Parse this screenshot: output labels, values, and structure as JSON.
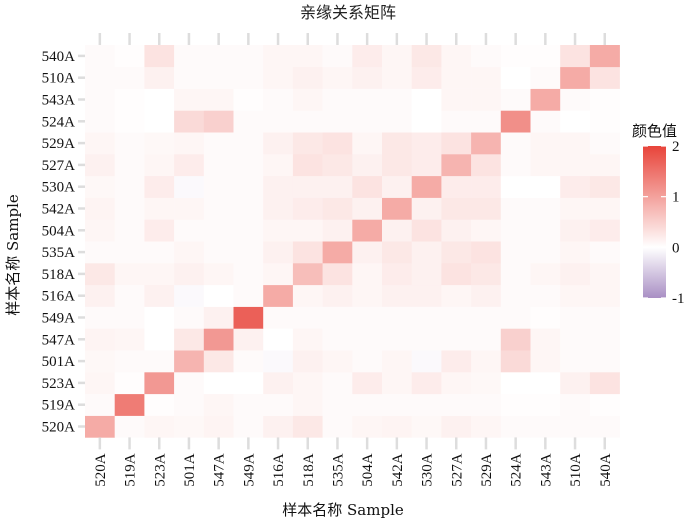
{
  "chart_data": {
    "type": "heatmap",
    "title": "亲缘关系矩阵",
    "xlabel": "样本名称 Sample",
    "ylabel": "样本名称 Sample",
    "samples": [
      "520A",
      "519A",
      "523A",
      "501A",
      "547A",
      "549A",
      "516A",
      "518A",
      "535A",
      "504A",
      "542A",
      "530A",
      "527A",
      "529A",
      "524A",
      "543A",
      "510A",
      "540A"
    ],
    "legend": {
      "title": "颜色值",
      "range": [
        -1,
        2
      ],
      "ticks": [
        "2",
        "1",
        "0",
        "-1"
      ],
      "tick_values": [
        2,
        1,
        0,
        -1
      ],
      "colors": {
        "low": "#a98fc4",
        "mid": "#ffffff",
        "high": "#e8443a"
      }
    },
    "grid": false,
    "legend_placement": "right",
    "matrix": [
      [
        0.9,
        0.05,
        0.1,
        0.08,
        0.12,
        0.05,
        0.15,
        0.25,
        0.05,
        0.1,
        0.12,
        0.08,
        0.15,
        0.1,
        0.05,
        0.05,
        0.05,
        0.05
      ],
      [
        0.05,
        1.4,
        0.02,
        0.05,
        0.1,
        0.05,
        0.05,
        0.1,
        0.05,
        0.05,
        0.05,
        0.05,
        0.05,
        0.05,
        0.02,
        0.02,
        0.05,
        0.02
      ],
      [
        0.1,
        0.02,
        1.1,
        0.05,
        0.0,
        0.0,
        0.15,
        0.1,
        0.05,
        0.2,
        0.1,
        0.2,
        0.1,
        0.08,
        0.0,
        0.0,
        0.15,
        0.3
      ],
      [
        0.08,
        0.05,
        0.05,
        0.8,
        0.25,
        0.05,
        -0.05,
        0.15,
        0.1,
        0.05,
        0.1,
        -0.05,
        0.2,
        0.1,
        0.4,
        0.1,
        0.05,
        0.05
      ],
      [
        0.12,
        0.1,
        0.0,
        0.25,
        1.1,
        0.15,
        0.0,
        0.1,
        0.05,
        0.05,
        0.05,
        0.05,
        0.05,
        0.05,
        0.5,
        0.1,
        0.05,
        0.05
      ],
      [
        0.05,
        0.05,
        0.0,
        0.05,
        0.15,
        1.7,
        0.05,
        0.05,
        0.05,
        0.05,
        0.05,
        0.05,
        0.05,
        0.05,
        0.05,
        0.02,
        0.05,
        0.05
      ],
      [
        0.15,
        0.05,
        0.15,
        -0.05,
        0.0,
        0.05,
        0.9,
        0.1,
        0.15,
        0.1,
        0.15,
        0.15,
        0.1,
        0.15,
        0.05,
        0.05,
        0.1,
        0.1
      ],
      [
        0.25,
        0.1,
        0.1,
        0.15,
        0.1,
        0.05,
        0.1,
        0.7,
        0.3,
        0.1,
        0.2,
        0.15,
        0.3,
        0.25,
        0.05,
        0.1,
        0.15,
        0.1
      ],
      [
        0.05,
        0.05,
        0.05,
        0.1,
        0.05,
        0.05,
        0.15,
        0.3,
        0.9,
        0.15,
        0.25,
        0.15,
        0.25,
        0.3,
        0.05,
        0.05,
        0.1,
        0.05
      ],
      [
        0.1,
        0.05,
        0.2,
        0.05,
        0.05,
        0.05,
        0.1,
        0.1,
        0.15,
        0.9,
        0.15,
        0.3,
        0.15,
        0.1,
        0.05,
        0.05,
        0.15,
        0.2
      ],
      [
        0.12,
        0.05,
        0.1,
        0.1,
        0.05,
        0.05,
        0.15,
        0.2,
        0.25,
        0.15,
        0.9,
        0.15,
        0.25,
        0.25,
        0.05,
        0.05,
        0.1,
        0.1
      ],
      [
        0.08,
        0.05,
        0.2,
        -0.05,
        0.05,
        0.05,
        0.15,
        0.15,
        0.15,
        0.3,
        0.15,
        0.9,
        0.2,
        0.2,
        0.0,
        0.0,
        0.2,
        0.25
      ],
      [
        0.15,
        0.05,
        0.1,
        0.2,
        0.05,
        0.05,
        0.1,
        0.3,
        0.25,
        0.15,
        0.25,
        0.2,
        0.8,
        0.3,
        0.05,
        0.1,
        0.1,
        0.1
      ],
      [
        0.1,
        0.05,
        0.08,
        0.1,
        0.05,
        0.05,
        0.15,
        0.25,
        0.3,
        0.1,
        0.25,
        0.2,
        0.3,
        0.8,
        0.05,
        0.1,
        0.1,
        0.05
      ],
      [
        0.05,
        0.02,
        0.0,
        0.4,
        0.5,
        0.05,
        0.05,
        0.05,
        0.05,
        0.05,
        0.05,
        0.0,
        0.05,
        0.05,
        1.2,
        0.05,
        0.0,
        0.02
      ],
      [
        0.05,
        0.02,
        0.0,
        0.1,
        0.1,
        0.02,
        0.05,
        0.1,
        0.05,
        0.05,
        0.05,
        0.0,
        0.1,
        0.1,
        0.05,
        0.9,
        0.05,
        0.02
      ],
      [
        0.05,
        0.05,
        0.15,
        0.05,
        0.05,
        0.05,
        0.1,
        0.15,
        0.1,
        0.15,
        0.1,
        0.2,
        0.1,
        0.1,
        0.0,
        0.05,
        0.9,
        0.3
      ],
      [
        0.05,
        0.02,
        0.3,
        0.05,
        0.05,
        0.05,
        0.1,
        0.1,
        0.05,
        0.2,
        0.1,
        0.25,
        0.1,
        0.05,
        0.02,
        0.02,
        0.3,
        0.9
      ]
    ]
  }
}
